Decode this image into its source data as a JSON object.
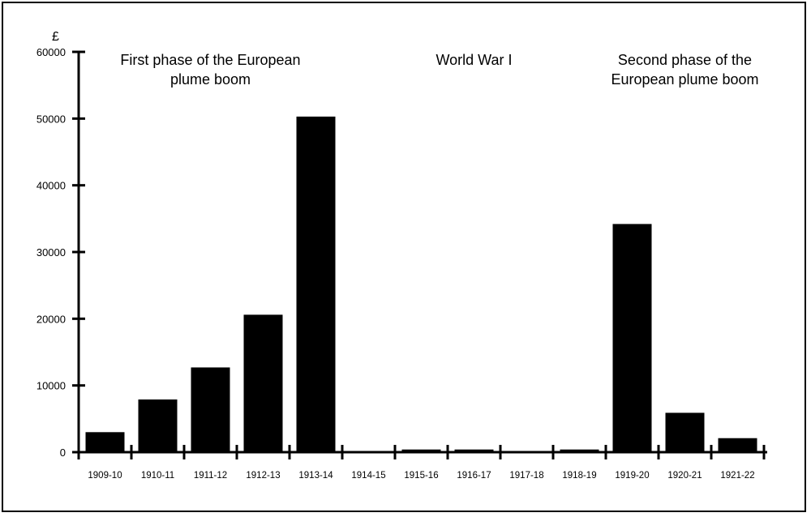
{
  "chart_data": {
    "type": "bar",
    "title": "",
    "xlabel": "",
    "ylabel": "£",
    "ylim": [
      0,
      60000
    ],
    "yticks": [
      0,
      10000,
      20000,
      30000,
      40000,
      50000,
      60000
    ],
    "ytick_labels": [
      "0",
      "10000",
      "20000",
      "30000",
      "40000",
      "50000",
      "60000"
    ],
    "grid": false,
    "categories": [
      "1909-10",
      "1910-11",
      "1911-12",
      "1912-13",
      "1913-14",
      "1914-15",
      "1915-16",
      "1916-17",
      "1917-18",
      "1918-19",
      "1919-20",
      "1920-21",
      "1921-22"
    ],
    "values": [
      3000,
      7900,
      12700,
      20600,
      50300,
      0,
      400,
      400,
      0,
      400,
      34200,
      5900,
      2100
    ],
    "bar_color": "#000000",
    "annotations": [
      {
        "lines": [
          "First phase of the European",
          "plume boom"
        ],
        "anchor_category": "1911-12"
      },
      {
        "lines": [
          "World War I"
        ],
        "anchor_category": "1916-17"
      },
      {
        "lines": [
          "Second phase of the",
          "European plume boom"
        ],
        "anchor_category": "1920-21"
      }
    ]
  }
}
